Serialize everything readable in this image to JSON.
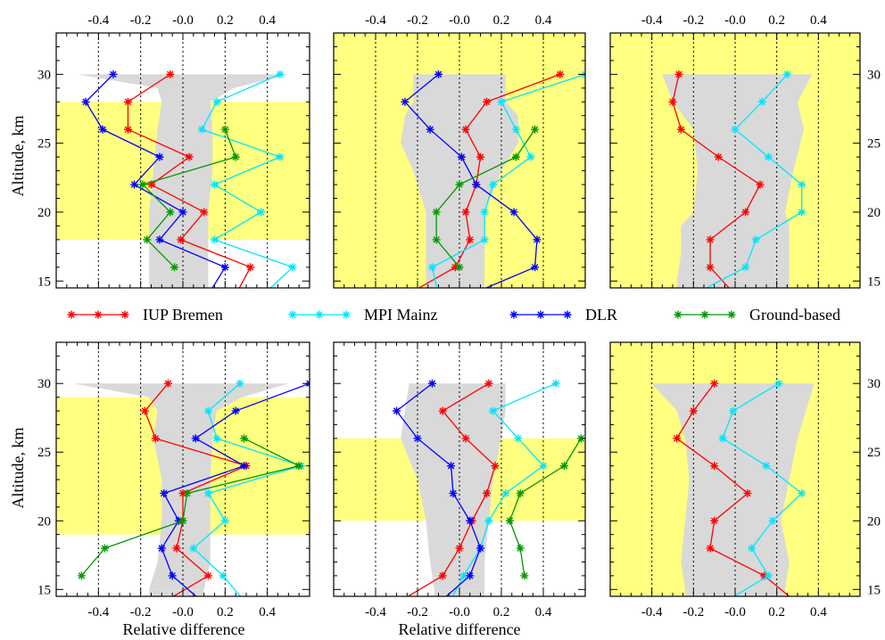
{
  "colors": {
    "band": "#ffff80",
    "envelope": "#d9d9d9",
    "IUP Bremen": "#ff0000",
    "MPI Mainz": "#00e5ff",
    "DLR": "#0000ff",
    "Ground-based": "#009900"
  },
  "legend": [
    "IUP Bremen",
    "MPI Mainz",
    "DLR",
    "Ground-based"
  ],
  "axes": {
    "x_ticks": [
      "-0.4",
      "-0.2",
      "-0.0",
      "0.2",
      "0.4"
    ],
    "y_ticks": [
      "15",
      "20",
      "25",
      "30"
    ],
    "x_label": "Relative difference",
    "y_label": "Altitude, km"
  },
  "chart_data": [
    {
      "type": "line",
      "xlim": [
        -0.6,
        0.6
      ],
      "ylim": [
        14.5,
        33
      ],
      "band": [
        18,
        28
      ],
      "envelope": [
        [
          15,
          -0.16,
          0.12
        ],
        [
          17,
          -0.16,
          0.12
        ],
        [
          20,
          -0.16,
          0.12
        ],
        [
          23,
          -0.14,
          0.14
        ],
        [
          26,
          -0.12,
          0.14
        ],
        [
          28,
          -0.1,
          0.13
        ],
        [
          29,
          -0.12,
          0.24
        ],
        [
          30,
          -0.5,
          0.5
        ]
      ],
      "series": [
        {
          "name": "IUP Bremen",
          "points": [
            [
              14,
              0.25
            ],
            [
              16,
              0.32
            ],
            [
              18,
              -0.01
            ],
            [
              20,
              0.1
            ],
            [
              22,
              -0.15
            ],
            [
              24,
              0.03
            ],
            [
              26,
              -0.26
            ],
            [
              28,
              -0.26
            ],
            [
              30,
              -0.06
            ]
          ]
        },
        {
          "name": "MPI Mainz",
          "points": [
            [
              14,
              0.38
            ],
            [
              16,
              0.52
            ],
            [
              18,
              0.15
            ],
            [
              20,
              0.37
            ],
            [
              22,
              0.15
            ],
            [
              24,
              0.46
            ],
            [
              26,
              0.09
            ],
            [
              28,
              0.16
            ],
            [
              30,
              0.46
            ]
          ]
        },
        {
          "name": "DLR",
          "points": [
            [
              14,
              0.12
            ],
            [
              16,
              0.2
            ],
            [
              18,
              -0.11
            ],
            [
              20,
              0.0
            ],
            [
              22,
              -0.23
            ],
            [
              24,
              -0.11
            ],
            [
              26,
              -0.38
            ],
            [
              28,
              -0.46
            ],
            [
              30,
              -0.33
            ]
          ]
        },
        {
          "name": "Ground-based",
          "points": [
            [
              16,
              -0.04
            ],
            [
              18,
              -0.17
            ],
            [
              20,
              -0.06
            ],
            [
              22,
              -0.19
            ],
            [
              24,
              0.25
            ],
            [
              26,
              0.2
            ]
          ]
        }
      ]
    },
    {
      "type": "line",
      "xlim": [
        -0.6,
        0.6
      ],
      "ylim": [
        14.5,
        33
      ],
      "band": [
        14.5,
        33
      ],
      "envelope": [
        [
          15,
          -0.16,
          0.12
        ],
        [
          17,
          -0.16,
          0.12
        ],
        [
          20,
          -0.16,
          0.12
        ],
        [
          23,
          -0.22,
          0.2
        ],
        [
          25,
          -0.28,
          0.28
        ],
        [
          27,
          -0.26,
          0.28
        ],
        [
          28,
          -0.22,
          0.22
        ],
        [
          30,
          -0.22,
          0.22
        ]
      ],
      "series": [
        {
          "name": "IUP Bremen",
          "points": [
            [
              14,
              -0.25
            ],
            [
              16,
              -0.02
            ],
            [
              18,
              0.05
            ],
            [
              20,
              0.03
            ],
            [
              22,
              0.08
            ],
            [
              24,
              0.1
            ],
            [
              26,
              0.03
            ],
            [
              28,
              0.13
            ],
            [
              30,
              0.48
            ]
          ]
        },
        {
          "name": "MPI Mainz",
          "points": [
            [
              14,
              -0.1
            ],
            [
              16,
              -0.13
            ],
            [
              18,
              0.12
            ],
            [
              20,
              0.12
            ],
            [
              22,
              0.16
            ],
            [
              24,
              0.34
            ],
            [
              26,
              0.27
            ],
            [
              28,
              0.2
            ],
            [
              30,
              0.6
            ]
          ]
        },
        {
          "name": "DLR",
          "points": [
            [
              14,
              0.05
            ],
            [
              16,
              0.36
            ],
            [
              18,
              0.37
            ],
            [
              20,
              0.26
            ],
            [
              22,
              0.08
            ],
            [
              24,
              0.01
            ],
            [
              26,
              -0.14
            ],
            [
              28,
              -0.26
            ],
            [
              30,
              -0.1
            ]
          ]
        },
        {
          "name": "Ground-based",
          "points": [
            [
              16,
              0.0
            ],
            [
              18,
              -0.11
            ],
            [
              20,
              -0.11
            ],
            [
              22,
              0.0
            ],
            [
              24,
              0.27
            ],
            [
              26,
              0.36
            ]
          ]
        }
      ]
    },
    {
      "type": "line",
      "xlim": [
        -0.6,
        0.6
      ],
      "ylim": [
        14.5,
        33
      ],
      "band": [
        14.5,
        33
      ],
      "envelope": [
        [
          15,
          -0.28,
          0.26
        ],
        [
          17,
          -0.26,
          0.26
        ],
        [
          19,
          -0.26,
          0.26
        ],
        [
          20,
          -0.2,
          0.24
        ],
        [
          23,
          -0.18,
          0.28
        ],
        [
          26,
          -0.2,
          0.33
        ],
        [
          28,
          -0.3,
          0.3
        ],
        [
          30,
          -0.35,
          0.37
        ]
      ],
      "series": [
        {
          "name": "IUP Bremen",
          "points": [
            [
              14,
              0.0
            ],
            [
              16,
              -0.12
            ],
            [
              18,
              -0.12
            ],
            [
              20,
              0.05
            ],
            [
              22,
              0.12
            ],
            [
              24,
              -0.08
            ],
            [
              26,
              -0.26
            ],
            [
              28,
              -0.3
            ],
            [
              30,
              -0.27
            ]
          ]
        },
        {
          "name": "MPI Mainz",
          "points": [
            [
              14,
              -0.2
            ],
            [
              16,
              0.05
            ],
            [
              18,
              0.1
            ],
            [
              20,
              0.32
            ],
            [
              22,
              0.32
            ],
            [
              24,
              0.16
            ],
            [
              26,
              0.0
            ],
            [
              28,
              0.13
            ],
            [
              30,
              0.25
            ]
          ]
        }
      ]
    },
    {
      "type": "line",
      "xlim": [
        -0.6,
        0.6
      ],
      "ylim": [
        14.5,
        33
      ],
      "band": [
        19,
        29
      ],
      "envelope": [
        [
          15,
          -0.16,
          0.1
        ],
        [
          17,
          -0.12,
          0.13
        ],
        [
          20,
          -0.1,
          0.13
        ],
        [
          23,
          -0.1,
          0.13
        ],
        [
          26,
          -0.14,
          0.14
        ],
        [
          28,
          -0.12,
          0.16
        ],
        [
          29,
          -0.16,
          0.28
        ],
        [
          30,
          -0.52,
          0.5
        ]
      ],
      "series": [
        {
          "name": "IUP Bremen",
          "points": [
            [
              14,
              -0.1
            ],
            [
              16,
              0.12
            ],
            [
              18,
              -0.03
            ],
            [
              20,
              0.0
            ],
            [
              22,
              0.0
            ],
            [
              24,
              0.3
            ],
            [
              26,
              -0.13
            ],
            [
              28,
              -0.18
            ],
            [
              30,
              -0.07
            ]
          ]
        },
        {
          "name": "MPI Mainz",
          "points": [
            [
              14,
              0.3
            ],
            [
              16,
              0.19
            ],
            [
              18,
              0.05
            ],
            [
              20,
              0.2
            ],
            [
              22,
              0.12
            ],
            [
              24,
              0.56
            ],
            [
              26,
              0.16
            ],
            [
              28,
              0.12
            ],
            [
              30,
              0.27
            ]
          ]
        },
        {
          "name": "DLR",
          "points": [
            [
              14,
              0.1
            ],
            [
              16,
              -0.05
            ],
            [
              18,
              -0.1
            ],
            [
              20,
              -0.02
            ],
            [
              22,
              -0.09
            ],
            [
              24,
              0.29
            ],
            [
              26,
              0.06
            ],
            [
              28,
              0.25
            ],
            [
              30,
              0.6
            ]
          ]
        },
        {
          "name": "Ground-based",
          "points": [
            [
              16,
              -0.48
            ],
            [
              18,
              -0.37
            ],
            [
              20,
              0.0
            ],
            [
              22,
              0.02
            ],
            [
              24,
              0.55
            ],
            [
              26,
              0.29
            ]
          ]
        }
      ]
    },
    {
      "type": "line",
      "xlim": [
        -0.6,
        0.6
      ],
      "ylim": [
        14.5,
        33
      ],
      "band": [
        20,
        26
      ],
      "envelope": [
        [
          15,
          -0.12,
          0.12
        ],
        [
          17,
          -0.14,
          0.12
        ],
        [
          20,
          -0.16,
          0.14
        ],
        [
          23,
          -0.2,
          0.16
        ],
        [
          26,
          -0.28,
          0.2
        ],
        [
          28,
          -0.26,
          0.22
        ],
        [
          30,
          -0.24,
          0.22
        ]
      ],
      "series": [
        {
          "name": "IUP Bremen",
          "points": [
            [
              14,
              -0.3
            ],
            [
              16,
              -0.08
            ],
            [
              18,
              0.0
            ],
            [
              20,
              0.06
            ],
            [
              22,
              0.13
            ],
            [
              24,
              0.17
            ],
            [
              26,
              0.03
            ],
            [
              28,
              -0.08
            ],
            [
              30,
              0.14
            ]
          ]
        },
        {
          "name": "MPI Mainz",
          "points": [
            [
              14,
              -0.05
            ],
            [
              16,
              0.02
            ],
            [
              18,
              0.1
            ],
            [
              20,
              0.14
            ],
            [
              22,
              0.22
            ],
            [
              24,
              0.4
            ],
            [
              26,
              0.28
            ],
            [
              28,
              0.16
            ],
            [
              30,
              0.46
            ]
          ]
        },
        {
          "name": "DLR",
          "points": [
            [
              14,
              -0.1
            ],
            [
              16,
              0.05
            ],
            [
              18,
              0.1
            ],
            [
              20,
              0.05
            ],
            [
              22,
              -0.03
            ],
            [
              24,
              -0.04
            ],
            [
              26,
              -0.2
            ],
            [
              28,
              -0.3
            ],
            [
              30,
              -0.13
            ]
          ]
        },
        {
          "name": "Ground-based",
          "points": [
            [
              16,
              0.31
            ],
            [
              18,
              0.29
            ],
            [
              20,
              0.24
            ],
            [
              22,
              0.29
            ],
            [
              24,
              0.5
            ],
            [
              26,
              0.58
            ]
          ]
        }
      ]
    },
    {
      "type": "line",
      "xlim": [
        -0.6,
        0.6
      ],
      "ylim": [
        14.5,
        33
      ],
      "band": [
        14.5,
        33
      ],
      "envelope": [
        [
          15,
          -0.24,
          0.24
        ],
        [
          17,
          -0.26,
          0.26
        ],
        [
          20,
          -0.24,
          0.22
        ],
        [
          23,
          -0.22,
          0.26
        ],
        [
          26,
          -0.24,
          0.3
        ],
        [
          28,
          -0.28,
          0.34
        ],
        [
          30,
          -0.4,
          0.38
        ]
      ],
      "series": [
        {
          "name": "IUP Bremen",
          "points": [
            [
              14,
              0.3
            ],
            [
              16,
              0.14
            ],
            [
              18,
              -0.12
            ],
            [
              20,
              -0.1
            ],
            [
              22,
              0.06
            ],
            [
              24,
              -0.1
            ],
            [
              26,
              -0.28
            ],
            [
              28,
              -0.2
            ],
            [
              30,
              -0.1
            ]
          ]
        },
        {
          "name": "MPI Mainz",
          "points": [
            [
              14,
              -0.06
            ],
            [
              16,
              0.16
            ],
            [
              18,
              0.08
            ],
            [
              20,
              0.18
            ],
            [
              22,
              0.32
            ],
            [
              24,
              0.15
            ],
            [
              26,
              -0.06
            ],
            [
              28,
              -0.01
            ],
            [
              30,
              0.21
            ]
          ]
        }
      ]
    }
  ]
}
